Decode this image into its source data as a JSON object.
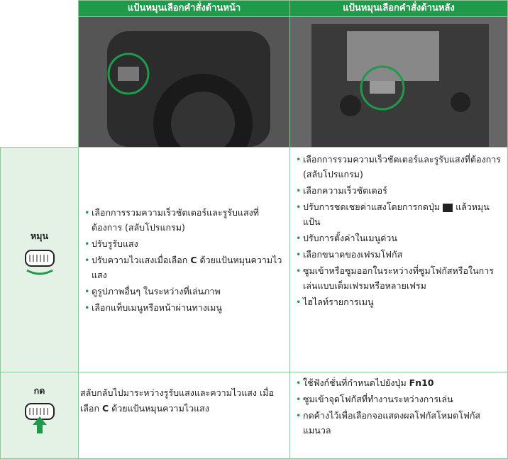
{
  "header": {
    "front": "แป้นหมุนเลือกคำสั่งด้านหน้า",
    "rear": "แป้นหมุนเลือกคำสั่งด้านหลัง"
  },
  "rows": [
    {
      "label": "หมุน",
      "front": [
        [
          "เลือกการรวมความเร็วชัตเตอร์และรูรับแสงที่ต้องการ (สลับโปรแกรม)"
        ],
        [
          "ปรับรูรับแสง"
        ],
        [
          "ปรับความไวแสงเมื่อเลือก ",
          "C",
          " ด้วยแป้นหมุนความไวแสง"
        ],
        [
          "ดูรูปภาพอื่นๆ ในระหว่างที่เล่นภาพ"
        ],
        [
          "เลือกแท็บเมนูหรือหน้าผ่านทางเมนู"
        ]
      ],
      "rear": [
        [
          "เลือกการรวมความเร็วชัตเตอร์และรูรับแสงที่ต้องการ (สลับโปรแกรม)"
        ],
        [
          "เลือกความเร็วชัตเตอร์"
        ],
        [
          "ปรับการชดเชยค่าแสงโดยการกดปุ่ม",
          "แล้วหมุนแป้น"
        ],
        [
          "ปรับการตั้งค่าในเมนูด่วน"
        ],
        [
          "เลือกขนาดของเฟรมโฟกัส"
        ],
        [
          "ซูมเข้าหรือซูมออกในระหว่างที่ซูมโฟกัสหรือในการเล่นแบบเต็มเฟรมหรือหลายเฟรม"
        ],
        [
          "ไฮไลท์รายการเมนู"
        ]
      ]
    },
    {
      "label": "กด",
      "front": [
        [
          "สลับกลับไปมาระหว่างรูรับแสงและความไวแสง เมื่อเลือก ",
          "C",
          " ด้วยแป้นหมุนความไวแสง"
        ]
      ],
      "rear": [
        [
          "ใช้ฟังก์ชั่นที่กำหนดไปยังปุ่ม ",
          "Fn10"
        ],
        [
          "ซูมเข้าจุดโฟกัสที่ทำงานระหว่างการเล่น"
        ],
        [
          "กดค้างไว้เพื่อเลือกจอแสดงผลโฟกัสโหมดโฟกัสแมนวล"
        ]
      ]
    }
  ]
}
